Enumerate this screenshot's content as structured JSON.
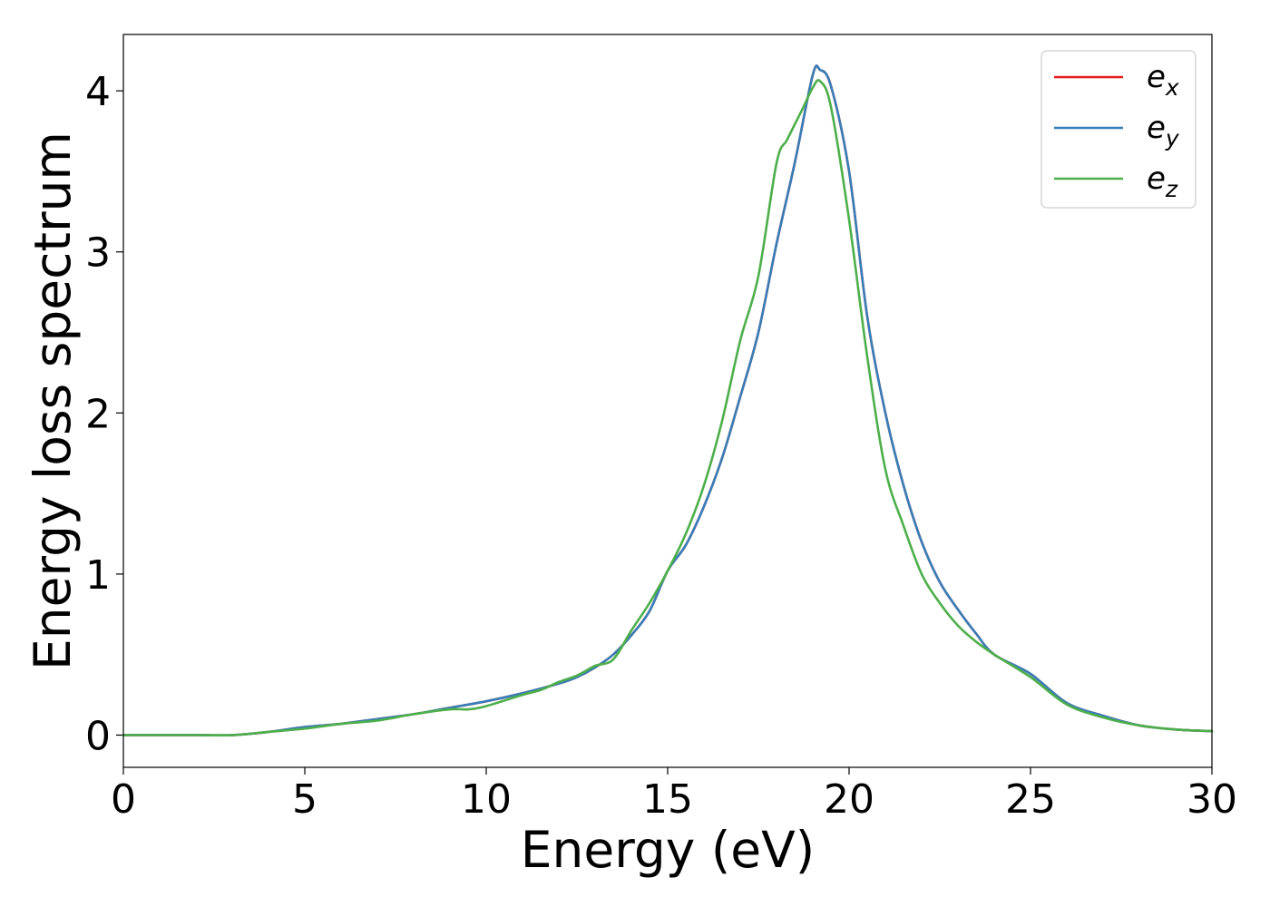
{
  "chart_data": {
    "type": "line",
    "title": "",
    "xlabel": "Energy (eV)",
    "ylabel": "Energy loss spectrum",
    "xlim": [
      0,
      30
    ],
    "ylim": [
      -0.2,
      4.35
    ],
    "xticks": [
      0,
      5,
      10,
      15,
      20,
      25,
      30
    ],
    "yticks": [
      0,
      1,
      2,
      3,
      4
    ],
    "grid": false,
    "legend_position": "top-right",
    "series": [
      {
        "name": "e_x",
        "label_base": "e",
        "label_sub": "x",
        "color": "#e41a1c",
        "x": [
          0,
          2,
          3,
          4,
          5,
          6,
          7,
          8,
          9,
          10,
          11,
          12,
          12.5,
          13,
          13.5,
          14,
          14.5,
          15,
          15.5,
          16,
          16.5,
          17,
          17.5,
          18,
          18.5,
          19,
          19.2,
          19.5,
          20,
          20.5,
          21,
          21.5,
          22,
          22.5,
          23,
          23.5,
          24,
          25,
          26,
          27,
          28,
          29,
          30
        ],
        "y": [
          0,
          0,
          0,
          0.02,
          0.05,
          0.07,
          0.1,
          0.13,
          0.17,
          0.21,
          0.26,
          0.32,
          0.36,
          0.42,
          0.5,
          0.62,
          0.77,
          1.02,
          1.18,
          1.42,
          1.72,
          2.1,
          2.5,
          3.05,
          3.55,
          4.1,
          4.13,
          4.03,
          3.5,
          2.6,
          2.0,
          1.55,
          1.2,
          0.95,
          0.78,
          0.63,
          0.5,
          0.38,
          0.2,
          0.12,
          0.06,
          0.035,
          0.025
        ]
      },
      {
        "name": "e_y",
        "label_base": "e",
        "label_sub": "y",
        "color": "#377eb8",
        "x": [
          0,
          2,
          3,
          4,
          5,
          6,
          7,
          8,
          9,
          10,
          11,
          12,
          12.5,
          13,
          13.5,
          14,
          14.5,
          15,
          15.5,
          16,
          16.5,
          17,
          17.5,
          18,
          18.5,
          19,
          19.2,
          19.5,
          20,
          20.5,
          21,
          21.5,
          22,
          22.5,
          23,
          23.5,
          24,
          25,
          26,
          27,
          28,
          29,
          30
        ],
        "y": [
          0,
          0,
          0,
          0.02,
          0.05,
          0.07,
          0.1,
          0.13,
          0.17,
          0.21,
          0.26,
          0.32,
          0.36,
          0.42,
          0.5,
          0.62,
          0.77,
          1.02,
          1.18,
          1.42,
          1.72,
          2.1,
          2.5,
          3.05,
          3.55,
          4.1,
          4.13,
          4.03,
          3.5,
          2.6,
          2.0,
          1.55,
          1.2,
          0.95,
          0.78,
          0.63,
          0.5,
          0.38,
          0.2,
          0.12,
          0.06,
          0.035,
          0.025
        ]
      },
      {
        "name": "e_z",
        "label_base": "e",
        "label_sub": "z",
        "color": "#4daf4a",
        "x": [
          0,
          2,
          3,
          4,
          5,
          6,
          7,
          8,
          9,
          9.5,
          10,
          11,
          11.5,
          12,
          12.5,
          13,
          13.5,
          14,
          14.5,
          15,
          15.5,
          16,
          16.5,
          17,
          17.5,
          18,
          18.3,
          18.7,
          19,
          19.2,
          19.5,
          20,
          20.5,
          21,
          21.5,
          22,
          22.5,
          23,
          23.5,
          24,
          25,
          26,
          27,
          28,
          29,
          30
        ],
        "y": [
          0,
          0,
          0,
          0.02,
          0.04,
          0.07,
          0.09,
          0.13,
          0.16,
          0.16,
          0.18,
          0.25,
          0.28,
          0.33,
          0.37,
          0.43,
          0.47,
          0.65,
          0.82,
          1.02,
          1.25,
          1.55,
          1.95,
          2.45,
          2.85,
          3.55,
          3.7,
          3.88,
          4.02,
          4.06,
          3.9,
          3.2,
          2.35,
          1.65,
          1.3,
          1.0,
          0.82,
          0.68,
          0.58,
          0.5,
          0.36,
          0.19,
          0.11,
          0.06,
          0.035,
          0.025
        ]
      }
    ]
  }
}
